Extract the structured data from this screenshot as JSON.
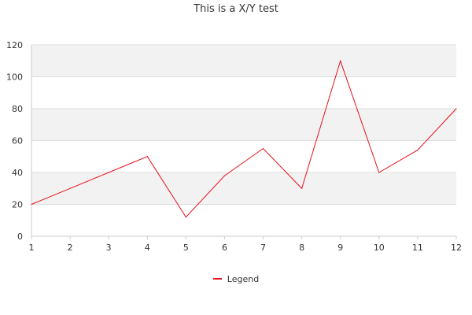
{
  "chart_data": {
    "type": "line",
    "title": "This is a X/Y test",
    "xlabel": "",
    "ylabel": "",
    "x": [
      1,
      2,
      3,
      4,
      5,
      6,
      7,
      8,
      9,
      10,
      11,
      12
    ],
    "series": [
      {
        "name": "Legend",
        "values": [
          20,
          30,
          40,
          50,
          12,
          38,
          55,
          30,
          110,
          40,
          54,
          80
        ]
      }
    ],
    "xlim": [
      1,
      12
    ],
    "ylim": [
      0,
      120
    ],
    "yticks": [
      0,
      20,
      40,
      60,
      80,
      100,
      120
    ],
    "grid": true,
    "banded_background": true,
    "legend_position": "bottom-center"
  },
  "colors": {
    "series": "#e8121c",
    "band": "#f2f2f2",
    "grid": "#dddddd",
    "axis": "#cccccc"
  }
}
